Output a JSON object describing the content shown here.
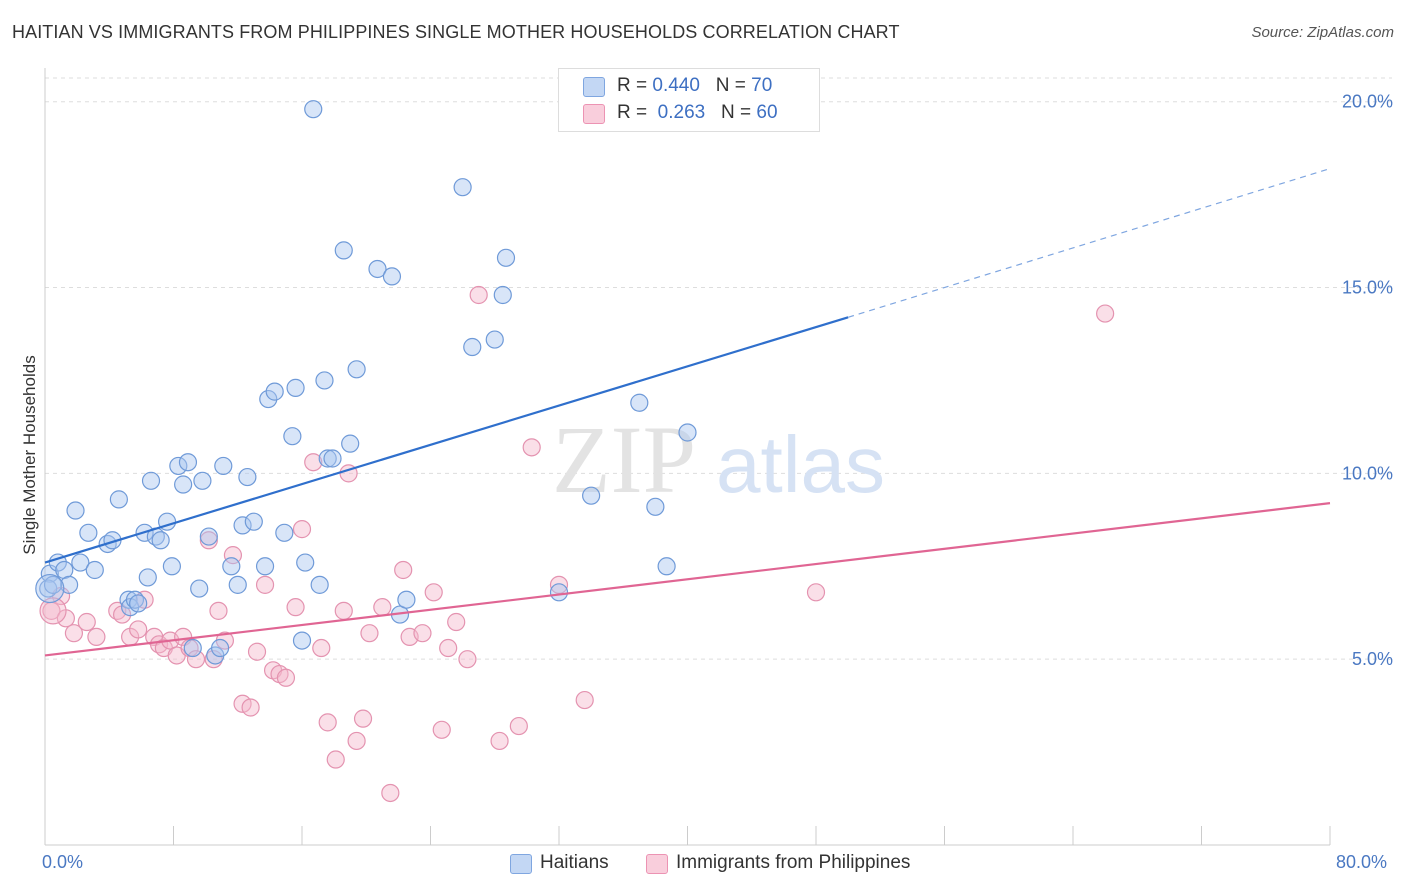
{
  "title": "HAITIAN VS IMMIGRANTS FROM PHILIPPINES SINGLE MOTHER HOUSEHOLDS CORRELATION CHART",
  "source": "Source: ZipAtlas.com",
  "watermark": {
    "zip": "ZIP",
    "atlas": "atlas"
  },
  "legend": {
    "haitians": {
      "r_label": "R = ",
      "r_value": "0.440",
      "n_label": "N = ",
      "n_value": "70"
    },
    "philippines": {
      "r_label": "R = ",
      "r_value": "0.263",
      "n_label": "N = ",
      "n_value": "60"
    }
  },
  "colors": {
    "blue": "#2f6fcc",
    "blue_fill": "#a9c6ef",
    "pink": "#e06593",
    "pink_fill": "#f5b8cc",
    "grid": "#dddddd"
  },
  "chart_data": {
    "type": "scatter",
    "title": "HAITIAN VS IMMIGRANTS FROM PHILIPPINES SINGLE MOTHER HOUSEHOLDS CORRELATION CHART",
    "xlabel": "",
    "ylabel": "Single Mother Households",
    "xlim": [
      0,
      80
    ],
    "ylim": [
      0,
      20.8
    ],
    "x_tick_labels": [
      "0.0%",
      "80.0%"
    ],
    "y_ticks": [
      5,
      10,
      15,
      20
    ],
    "y_tick_labels": [
      "5.0%",
      "10.0%",
      "15.0%",
      "20.0%"
    ],
    "grid": true,
    "legend_position": "top-center",
    "series": [
      {
        "name": "Haitians",
        "color": "#2f6fcc",
        "trend": {
          "x0": 0,
          "y0": 7.6,
          "x1": 50,
          "y1": 14.2,
          "dash_to_x": 80,
          "dash_to_y": 18.2
        },
        "points": [
          [
            0.3,
            7.3
          ],
          [
            0.8,
            7.6
          ],
          [
            1.2,
            7.4
          ],
          [
            1.5,
            7.0
          ],
          [
            1.9,
            9.0
          ],
          [
            2.2,
            7.6
          ],
          [
            2.7,
            8.4
          ],
          [
            3.1,
            7.4
          ],
          [
            3.9,
            8.1
          ],
          [
            4.2,
            8.2
          ],
          [
            4.6,
            9.3
          ],
          [
            5.2,
            6.6
          ],
          [
            5.3,
            6.4
          ],
          [
            5.6,
            6.6
          ],
          [
            5.8,
            6.5
          ],
          [
            6.2,
            8.4
          ],
          [
            6.4,
            7.2
          ],
          [
            6.6,
            9.8
          ],
          [
            6.9,
            8.3
          ],
          [
            7.2,
            8.2
          ],
          [
            7.6,
            8.7
          ],
          [
            7.9,
            7.5
          ],
          [
            8.3,
            10.2
          ],
          [
            8.6,
            9.7
          ],
          [
            8.9,
            10.3
          ],
          [
            9.2,
            5.3
          ],
          [
            9.6,
            6.9
          ],
          [
            9.8,
            9.8
          ],
          [
            10.2,
            8.3
          ],
          [
            10.6,
            5.1
          ],
          [
            10.9,
            5.3
          ],
          [
            11.1,
            10.2
          ],
          [
            11.6,
            7.5
          ],
          [
            12.0,
            7.0
          ],
          [
            12.3,
            8.6
          ],
          [
            12.6,
            9.9
          ],
          [
            13.0,
            8.7
          ],
          [
            13.7,
            7.5
          ],
          [
            13.9,
            12.0
          ],
          [
            14.3,
            12.2
          ],
          [
            14.9,
            8.4
          ],
          [
            15.4,
            11.0
          ],
          [
            15.6,
            12.3
          ],
          [
            16.0,
            5.5
          ],
          [
            16.2,
            7.6
          ],
          [
            16.7,
            19.8
          ],
          [
            17.1,
            7.0
          ],
          [
            17.4,
            12.5
          ],
          [
            17.6,
            10.4
          ],
          [
            17.9,
            10.4
          ],
          [
            18.6,
            16.0
          ],
          [
            19.0,
            10.8
          ],
          [
            19.4,
            12.8
          ],
          [
            20.7,
            15.5
          ],
          [
            21.6,
            15.3
          ],
          [
            22.1,
            6.2
          ],
          [
            22.5,
            6.6
          ],
          [
            26.0,
            17.7
          ],
          [
            26.6,
            13.4
          ],
          [
            28.0,
            13.6
          ],
          [
            28.5,
            14.8
          ],
          [
            28.7,
            15.8
          ],
          [
            32.0,
            6.8
          ],
          [
            34.0,
            9.4
          ],
          [
            37.0,
            11.9
          ],
          [
            38.0,
            9.1
          ],
          [
            38.7,
            7.5
          ],
          [
            40.0,
            11.1
          ],
          [
            0.2,
            6.9
          ],
          [
            0.5,
            7.0
          ]
        ]
      },
      {
        "name": "Immigrants from Philippines",
        "color": "#e06593",
        "trend": {
          "x0": 0,
          "y0": 5.1,
          "x1": 80,
          "y1": 9.2
        },
        "points": [
          [
            0.4,
            6.3
          ],
          [
            1.0,
            6.7
          ],
          [
            1.3,
            6.1
          ],
          [
            1.8,
            5.7
          ],
          [
            2.6,
            6.0
          ],
          [
            3.2,
            5.6
          ],
          [
            4.5,
            6.3
          ],
          [
            4.8,
            6.2
          ],
          [
            5.3,
            5.6
          ],
          [
            5.8,
            5.8
          ],
          [
            6.2,
            6.6
          ],
          [
            6.8,
            5.6
          ],
          [
            7.1,
            5.4
          ],
          [
            7.4,
            5.3
          ],
          [
            7.8,
            5.5
          ],
          [
            8.2,
            5.1
          ],
          [
            8.6,
            5.6
          ],
          [
            9.0,
            5.3
          ],
          [
            9.4,
            5.0
          ],
          [
            10.2,
            8.2
          ],
          [
            10.5,
            5.0
          ],
          [
            10.8,
            6.3
          ],
          [
            11.2,
            5.5
          ],
          [
            11.7,
            7.8
          ],
          [
            12.3,
            3.8
          ],
          [
            12.8,
            3.7
          ],
          [
            13.2,
            5.2
          ],
          [
            13.7,
            7.0
          ],
          [
            14.2,
            4.7
          ],
          [
            14.6,
            4.6
          ],
          [
            15.0,
            4.5
          ],
          [
            15.6,
            6.4
          ],
          [
            16.0,
            8.5
          ],
          [
            16.7,
            10.3
          ],
          [
            17.2,
            5.3
          ],
          [
            17.6,
            3.3
          ],
          [
            18.1,
            2.3
          ],
          [
            18.6,
            6.3
          ],
          [
            18.9,
            10.0
          ],
          [
            19.4,
            2.8
          ],
          [
            19.8,
            3.4
          ],
          [
            20.2,
            5.7
          ],
          [
            21.0,
            6.4
          ],
          [
            21.5,
            1.4
          ],
          [
            22.3,
            7.4
          ],
          [
            22.7,
            5.6
          ],
          [
            23.5,
            5.7
          ],
          [
            24.2,
            6.8
          ],
          [
            24.7,
            3.1
          ],
          [
            25.1,
            5.3
          ],
          [
            25.6,
            6.0
          ],
          [
            26.3,
            5.0
          ],
          [
            27.0,
            14.8
          ],
          [
            28.3,
            2.8
          ],
          [
            29.5,
            3.2
          ],
          [
            30.3,
            10.7
          ],
          [
            32.0,
            7.0
          ],
          [
            33.6,
            3.9
          ],
          [
            48.0,
            6.8
          ],
          [
            66.0,
            14.3
          ]
        ]
      }
    ]
  },
  "bottom_legend": {
    "haitians": "Haitians",
    "philippines": "Immigrants from Philippines"
  }
}
